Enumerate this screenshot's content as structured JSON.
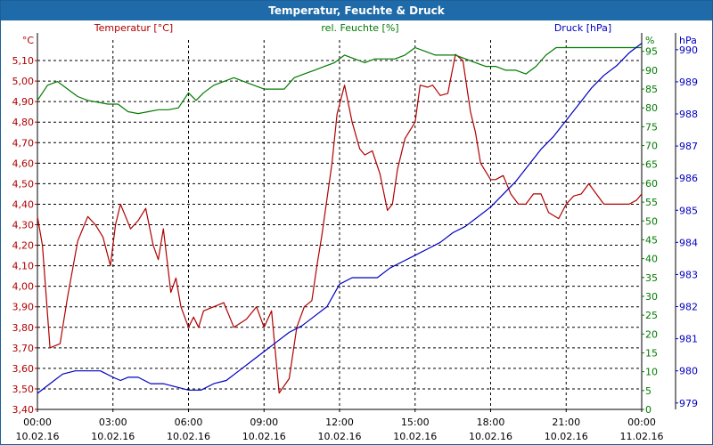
{
  "title": "Temperatur, Feuchte & Druck",
  "colors": {
    "temperature": "#b00000",
    "humidity": "#007a00",
    "pressure": "#0000c0",
    "title_bg": "#1f6aa8",
    "axis": "#000000"
  },
  "chart_data": {
    "type": "line",
    "title": "Temperatur, Feuchte & Druck",
    "grid": true,
    "x_unit": "hours",
    "xlim": [
      0,
      24
    ],
    "x_ticks": [
      {
        "time": "00:00",
        "date": "10.02.16"
      },
      {
        "time": "03:00",
        "date": "10.02.16"
      },
      {
        "time": "06:00",
        "date": "10.02.16"
      },
      {
        "time": "09:00",
        "date": "10.02.16"
      },
      {
        "time": "12:00",
        "date": "10.02.16"
      },
      {
        "time": "15:00",
        "date": "10.02.16"
      },
      {
        "time": "18:00",
        "date": "10.02.16"
      },
      {
        "time": "21:00",
        "date": "10.02.16"
      },
      {
        "time": "00:00",
        "date": "11.02.16"
      }
    ],
    "axes": {
      "temperature": {
        "label": "Temperatur [°C]",
        "unit": "°C",
        "ylim": [
          3.4,
          5.2
        ],
        "ticks": [
          "3,40",
          "3,50",
          "3,60",
          "3,70",
          "3,80",
          "3,90",
          "4,00",
          "4,10",
          "4,20",
          "4,30",
          "4,40",
          "4,50",
          "4,60",
          "4,70",
          "4,80",
          "4,90",
          "5,00",
          "5,10"
        ]
      },
      "humidity": {
        "label": "rel. Feuchte [%]",
        "unit": "%",
        "ylim": [
          0,
          98
        ],
        "ticks": [
          "0",
          "5",
          "10",
          "15",
          "20",
          "25",
          "30",
          "35",
          "40",
          "45",
          "50",
          "55",
          "60",
          "65",
          "70",
          "75",
          "80",
          "85",
          "90",
          "95"
        ]
      },
      "pressure": {
        "label": "Druck [hPa]",
        "unit": "hPa",
        "ylim": [
          978.8,
          990.3
        ],
        "ticks": [
          "979",
          "980",
          "981",
          "982",
          "983",
          "984",
          "985",
          "986",
          "987",
          "988",
          "989",
          "990"
        ]
      }
    },
    "series": [
      {
        "name": "Temperatur [°C]",
        "axis": "temperature",
        "x": [
          0,
          0.2,
          0.5,
          0.9,
          1.2,
          1.6,
          2,
          2.3,
          2.6,
          2.9,
          3.1,
          3.3,
          3.5,
          3.7,
          4,
          4.3,
          4.6,
          4.8,
          5,
          5.3,
          5.5,
          5.7,
          6,
          6.2,
          6.4,
          6.6,
          7,
          7.4,
          7.8,
          8.3,
          8.7,
          9,
          9.3,
          9.6,
          10,
          10.3,
          10.6,
          10.9,
          11.1,
          11.3,
          11.7,
          11.9,
          12.2,
          12.5,
          12.8,
          13,
          13.3,
          13.6,
          13.9,
          14.1,
          14.3,
          14.6,
          15,
          15.2,
          15.5,
          15.7,
          16,
          16.3,
          16.6,
          16.9,
          17.2,
          17.4,
          17.6,
          18,
          18.2,
          18.5,
          18.8,
          19.1,
          19.4,
          19.7,
          20,
          20.3,
          20.7,
          21,
          21.3,
          21.6,
          21.9,
          22.2,
          22.5,
          22.8,
          23.2,
          23.5,
          23.8,
          24
        ],
        "y": [
          4.34,
          4.2,
          3.7,
          3.72,
          3.95,
          4.22,
          4.34,
          4.3,
          4.24,
          4.1,
          4.3,
          4.4,
          4.34,
          4.28,
          4.32,
          4.38,
          4.2,
          4.13,
          4.28,
          3.97,
          4.04,
          3.9,
          3.8,
          3.85,
          3.8,
          3.88,
          3.9,
          3.92,
          3.8,
          3.84,
          3.9,
          3.8,
          3.88,
          3.48,
          3.55,
          3.8,
          3.9,
          3.93,
          4.1,
          4.25,
          4.6,
          4.84,
          4.98,
          4.8,
          4.67,
          4.64,
          4.66,
          4.55,
          4.37,
          4.4,
          4.57,
          4.72,
          4.8,
          4.98,
          4.97,
          4.98,
          4.93,
          4.94,
          5.13,
          5.1,
          4.85,
          4.75,
          4.6,
          4.52,
          4.52,
          4.54,
          4.45,
          4.4,
          4.4,
          4.45,
          4.45,
          4.36,
          4.33,
          4.4,
          4.44,
          4.45,
          4.5,
          4.45,
          4.4,
          4.4,
          4.4,
          4.4,
          4.42,
          4.45
        ]
      },
      {
        "name": "rel. Feuchte [%]",
        "axis": "humidity",
        "x": [
          0,
          0.4,
          0.8,
          1.2,
          1.6,
          2,
          2.4,
          2.8,
          3.2,
          3.6,
          4,
          4.4,
          4.8,
          5.2,
          5.6,
          6,
          6.3,
          6.6,
          7,
          7.4,
          7.8,
          8.2,
          8.6,
          9,
          9.4,
          9.8,
          10.2,
          10.6,
          11,
          11.4,
          11.8,
          12.2,
          12.6,
          13,
          13.4,
          13.8,
          14.2,
          14.6,
          15,
          15.4,
          15.8,
          16.2,
          16.6,
          17,
          17.4,
          17.8,
          18.2,
          18.6,
          19,
          19.4,
          19.8,
          20.2,
          20.6,
          21,
          21.4,
          21.8,
          22.2,
          22.6,
          23,
          23.4,
          23.8,
          24
        ],
        "y": [
          82,
          86,
          87,
          85,
          83,
          82,
          81.5,
          81,
          81,
          79,
          78.5,
          79,
          79.5,
          79.5,
          80,
          84,
          82,
          84,
          86,
          87,
          88,
          87,
          86,
          85,
          85,
          85,
          88,
          89,
          90,
          91,
          92,
          94,
          93,
          92,
          93,
          93,
          93,
          94,
          96,
          95,
          94,
          94,
          94,
          93,
          92,
          91,
          91,
          90,
          90,
          89,
          91,
          94,
          96,
          96,
          96,
          96,
          96,
          96,
          96,
          96,
          96,
          96
        ]
      },
      {
        "name": "Druck [hPa]",
        "axis": "pressure",
        "x": [
          0,
          0.5,
          1,
          1.5,
          2,
          2.5,
          3,
          3.3,
          3.6,
          4,
          4.5,
          5,
          5.5,
          6,
          6.5,
          7,
          7.5,
          8,
          8.5,
          9,
          9.5,
          10,
          10.5,
          11,
          11.5,
          12,
          12.5,
          13,
          13.5,
          14,
          14.5,
          15,
          15.5,
          16,
          16.5,
          17,
          17.5,
          18,
          18.5,
          19,
          19.5,
          20,
          20.5,
          21,
          21.5,
          22,
          22.5,
          23,
          23.5,
          24
        ],
        "y": [
          979.3,
          979.6,
          979.9,
          980.0,
          980.0,
          980.0,
          979.8,
          979.7,
          979.8,
          979.8,
          979.6,
          979.6,
          979.5,
          979.4,
          979.4,
          979.6,
          979.7,
          980.0,
          980.3,
          980.6,
          980.9,
          981.2,
          981.4,
          981.7,
          982.0,
          982.7,
          982.9,
          982.9,
          982.9,
          983.2,
          983.4,
          983.6,
          983.8,
          984.0,
          984.3,
          984.5,
          984.8,
          985.1,
          985.5,
          985.9,
          986.4,
          986.9,
          987.3,
          987.8,
          988.3,
          988.8,
          989.2,
          989.5,
          989.9,
          990.2
        ]
      }
    ]
  }
}
